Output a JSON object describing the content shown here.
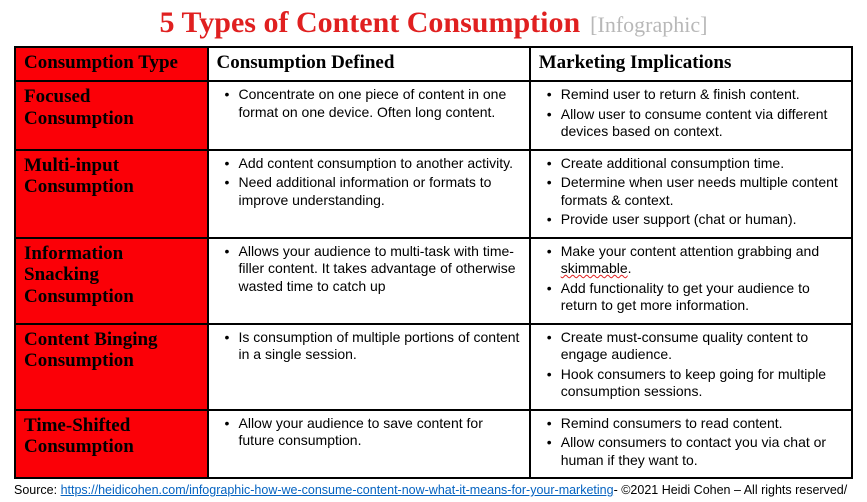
{
  "title": {
    "main": "5 Types of Content Consumption",
    "tag": "[Infographic]",
    "main_color": "#e02020",
    "tag_color": "#b8b8b8"
  },
  "columns": {
    "c0": "Consumption Type",
    "c1": "Consumption Defined",
    "c2": "Marketing Implications"
  },
  "colors": {
    "red_bg": "#fb0007",
    "border": "#000000",
    "white": "#ffffff"
  },
  "rows": [
    {
      "type": "Focused Consumption",
      "defined": [
        "Concentrate on one piece of content in one format on one device. Often long content."
      ],
      "implications": [
        "Remind user to return & finish content.",
        "Allow user to consume content via different devices based on context."
      ]
    },
    {
      "type": "Multi-input Consumption",
      "defined": [
        "Add content consumption to another activity.",
        "Need additional information or formats to improve understanding."
      ],
      "implications": [
        "Create additional consumption time.",
        "Determine when user needs multiple content formats & context.",
        "Provide user support (chat or human)."
      ]
    },
    {
      "type": "Information Snacking Consumption",
      "defined": [
        "Allows your audience to multi-task with  time-filler content. It takes advantage of otherwise wasted time to catch up"
      ],
      "implications": [
        "Make your content attention grabbing and <span class=\"squiggle\">skimmable</span>.",
        "Add functionality to get your audience to return to get more information."
      ]
    },
    {
      "type": "Content Binging Consumption",
      "defined": [
        "Is consumption of multiple portions of content in a single session."
      ],
      "implications": [
        "Create must-consume quality content to engage audience.",
        "Hook consumers to keep going for multiple consumption sessions."
      ]
    },
    {
      "type": "Time-Shifted Consumption",
      "defined": [
        "Allow your audience to save content for future consumption."
      ],
      "implications": [
        "Remind consumers to read content.",
        "Allow consumers to contact you via chat or human if they want to."
      ]
    }
  ],
  "source": {
    "label": "Source: ",
    "url_text": "https://heidicohen.com/infographic-how-we-consume-content-now-what-it-means-for-your-marketing",
    "suffix": "-  ©2021 Heidi Cohen –  All rights reserved/"
  }
}
